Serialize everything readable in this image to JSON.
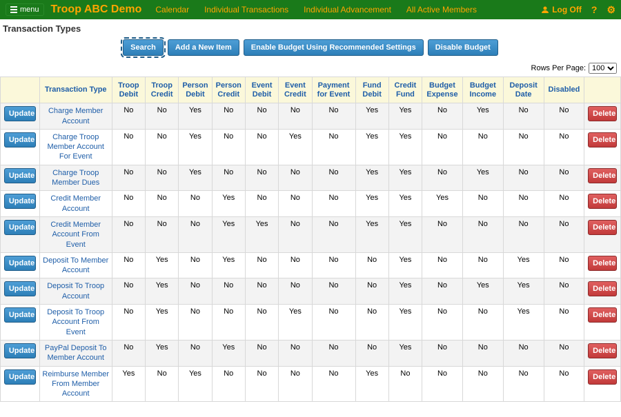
{
  "header": {
    "menu_label": "menu",
    "brand": "Troop ABC Demo",
    "nav": [
      "Calendar",
      "Individual Transactions",
      "Individual Advancement",
      "All Active Members"
    ],
    "logoff_label": "Log Off",
    "help_label": "?",
    "gear_label": "⚙"
  },
  "page": {
    "title": "Transaction Types",
    "actions": {
      "search": "Search",
      "add_item": "Add a New Item",
      "enable_budget": "Enable Budget Using Recommended Settings",
      "disable_budget": "Disable Budget"
    },
    "rows_per_page_label": "Rows Per Page:",
    "rows_per_page_value": "100"
  },
  "table": {
    "update_label": "Update",
    "delete_label": "Delete",
    "columns": [
      "Transaction Type",
      "Troop Debit",
      "Troop Credit",
      "Person Debit",
      "Person Credit",
      "Event Debit",
      "Event Credit",
      "Payment for Event",
      "Fund Debit",
      "Credit Fund",
      "Budget Expense",
      "Budget Income",
      "Deposit Date",
      "Disabled"
    ],
    "rows": [
      {
        "type": "Charge Member Account",
        "f": [
          "No",
          "No",
          "Yes",
          "No",
          "No",
          "No",
          "No",
          "Yes",
          "Yes",
          "No",
          "Yes",
          "No",
          "No"
        ]
      },
      {
        "type": "Charge Troop Member Account For Event",
        "f": [
          "No",
          "No",
          "Yes",
          "No",
          "No",
          "Yes",
          "No",
          "Yes",
          "Yes",
          "No",
          "No",
          "No",
          "No"
        ]
      },
      {
        "type": "Charge Troop Member Dues",
        "f": [
          "No",
          "No",
          "Yes",
          "No",
          "No",
          "No",
          "No",
          "Yes",
          "Yes",
          "No",
          "Yes",
          "No",
          "No"
        ]
      },
      {
        "type": "Credit Member Account",
        "f": [
          "No",
          "No",
          "No",
          "Yes",
          "No",
          "No",
          "No",
          "Yes",
          "Yes",
          "Yes",
          "No",
          "No",
          "No"
        ]
      },
      {
        "type": "Credit Member Account From Event",
        "f": [
          "No",
          "No",
          "No",
          "Yes",
          "Yes",
          "No",
          "No",
          "Yes",
          "Yes",
          "No",
          "No",
          "No",
          "No"
        ]
      },
      {
        "type": "Deposit To Member Account",
        "f": [
          "No",
          "Yes",
          "No",
          "Yes",
          "No",
          "No",
          "No",
          "No",
          "Yes",
          "No",
          "No",
          "Yes",
          "No"
        ]
      },
      {
        "type": "Deposit To Troop Account",
        "f": [
          "No",
          "Yes",
          "No",
          "No",
          "No",
          "No",
          "No",
          "No",
          "Yes",
          "No",
          "Yes",
          "Yes",
          "No"
        ]
      },
      {
        "type": "Deposit To Troop Account From Event",
        "f": [
          "No",
          "Yes",
          "No",
          "No",
          "No",
          "Yes",
          "No",
          "No",
          "Yes",
          "No",
          "No",
          "Yes",
          "No"
        ]
      },
      {
        "type": "PayPal Deposit To Member Account",
        "f": [
          "No",
          "Yes",
          "No",
          "Yes",
          "No",
          "No",
          "No",
          "No",
          "Yes",
          "No",
          "No",
          "No",
          "No"
        ]
      },
      {
        "type": "Reimburse Member From Member Account",
        "f": [
          "Yes",
          "No",
          "Yes",
          "No",
          "No",
          "No",
          "No",
          "Yes",
          "No",
          "No",
          "No",
          "No",
          "No"
        ]
      }
    ]
  },
  "colors": {
    "topbar_bg": "#1a7a1a",
    "accent_orange": "#FFA500",
    "header_bg": "#fbf8da",
    "link_blue": "#1f5ea8",
    "btn_blue_top": "#4e9ed6",
    "btn_red_top": "#e06060",
    "row_alt": "#f3f3f3"
  }
}
